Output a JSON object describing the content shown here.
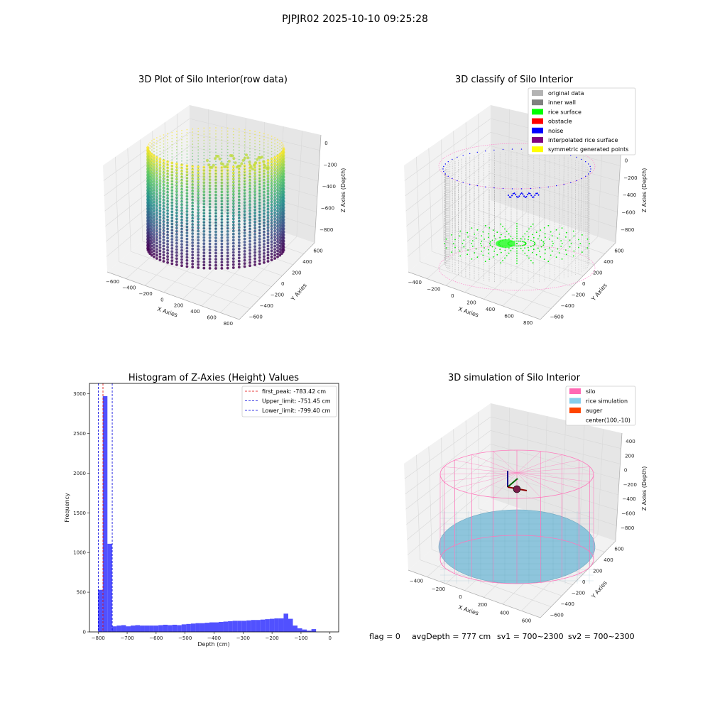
{
  "suptitle": "PJPJR02 2025-10-10 09:25:28",
  "colors": {
    "pane": "#f2f2f2",
    "pane_dark": "#e6e6e6",
    "grid": "#d8d8d8",
    "hist_bar": "#3333ff",
    "peak_line": "#e00000",
    "limit_line": "#0000dd"
  },
  "panels": {
    "raw": {
      "title": "3D Plot of Silo Interior(row data)",
      "xlabel": "X Axies",
      "ylabel": "Y Axies",
      "zlabel": "Z Axies (Depth)",
      "xticks": [
        "−600",
        "−400",
        "−200",
        "0",
        "200",
        "400",
        "600",
        "800"
      ],
      "yticks": [
        "−600",
        "−400",
        "−200",
        "0",
        "200",
        "400",
        "600"
      ],
      "zticks": [
        "0",
        "−200",
        "−400",
        "−600",
        "−800"
      ],
      "colormap": "viridis"
    },
    "classify": {
      "title": "3D classify of Silo Interior",
      "xlabel": "X Axies",
      "ylabel": "Y Axies",
      "zlabel": "Z Axies (Depth)",
      "xticks": [
        "−400",
        "−200",
        "0",
        "200",
        "400",
        "600",
        "800"
      ],
      "yticks": [
        "−600",
        "−400",
        "−200",
        "0",
        "200",
        "400",
        "600"
      ],
      "zticks": [
        "200",
        "0",
        "−200",
        "−400",
        "−600",
        "−800"
      ],
      "legend": [
        {
          "label": "original data",
          "color": "#b3b3b3"
        },
        {
          "label": "inner wall",
          "color": "#808080"
        },
        {
          "label": "rice surface",
          "color": "#00ff00"
        },
        {
          "label": "obstacle",
          "color": "#ff0000"
        },
        {
          "label": "noise",
          "color": "#0000ff"
        },
        {
          "label": "interpolated rice surface",
          "color": "#800080"
        },
        {
          "label": "symmetric generated points",
          "color": "#ffff00"
        }
      ]
    },
    "simulation": {
      "title": "3D simulation of Silo Interior",
      "xlabel": "X Axies",
      "ylabel": "Y Axies",
      "zlabel": "Z Axies (Depth)",
      "xticks": [
        "−400",
        "−200",
        "0",
        "200",
        "400",
        "600"
      ],
      "yticks": [
        "−600",
        "−400",
        "−200",
        "0",
        "200",
        "400",
        "600"
      ],
      "zticks": [
        "400",
        "200",
        "0",
        "−200",
        "−400",
        "−600",
        "−800"
      ],
      "legend": [
        {
          "label": "silo",
          "color": "#ff69b4"
        },
        {
          "label": "rice simulation",
          "color": "#87ceeb"
        },
        {
          "label": "auger",
          "color": "#ff4500"
        },
        {
          "label": "center(100,-10)",
          "color": ""
        }
      ]
    }
  },
  "status": {
    "flag": "flag = 0",
    "avg_depth": "avgDepth = 777 cm",
    "sv1": "sv1 = 700~2300",
    "sv2": "sv2 = 700~2300"
  },
  "chart_data": {
    "type": "bar",
    "title": "Histogram of Z-Axies (Height) Values",
    "xlabel": "Depth (cm)",
    "ylabel": "Frequency",
    "xlim": [
      -830,
      30
    ],
    "ylim": [
      0,
      3130
    ],
    "xticks": [
      -800,
      -700,
      -600,
      -500,
      -400,
      -300,
      -200,
      -100,
      0
    ],
    "xtick_labels": [
      "−800",
      "−700",
      "−600",
      "−500",
      "−400",
      "−300",
      "−200",
      "−100",
      "0"
    ],
    "yticks": [
      0,
      500,
      1000,
      1500,
      2000,
      2500,
      3000
    ],
    "bin_start": -800,
    "bin_width": 16,
    "values": [
      530,
      2970,
      1110,
      70,
      80,
      85,
      70,
      80,
      85,
      80,
      80,
      80,
      80,
      85,
      90,
      85,
      90,
      85,
      95,
      100,
      105,
      110,
      110,
      115,
      120,
      120,
      125,
      130,
      135,
      140,
      140,
      140,
      145,
      150,
      150,
      155,
      160,
      165,
      170,
      170,
      230,
      165,
      80,
      45,
      30,
      15,
      35
    ],
    "vlines": [
      {
        "label": "first_peak: -783.42 cm",
        "x": -783.42,
        "color": "#e00000"
      },
      {
        "label": "Upper_limit: -751.45 cm",
        "x": -751.45,
        "color": "#0000dd"
      },
      {
        "label": "Lower_limit: -799.40 cm",
        "x": -799.4,
        "color": "#0000dd"
      }
    ],
    "legend_position": "upper right"
  }
}
